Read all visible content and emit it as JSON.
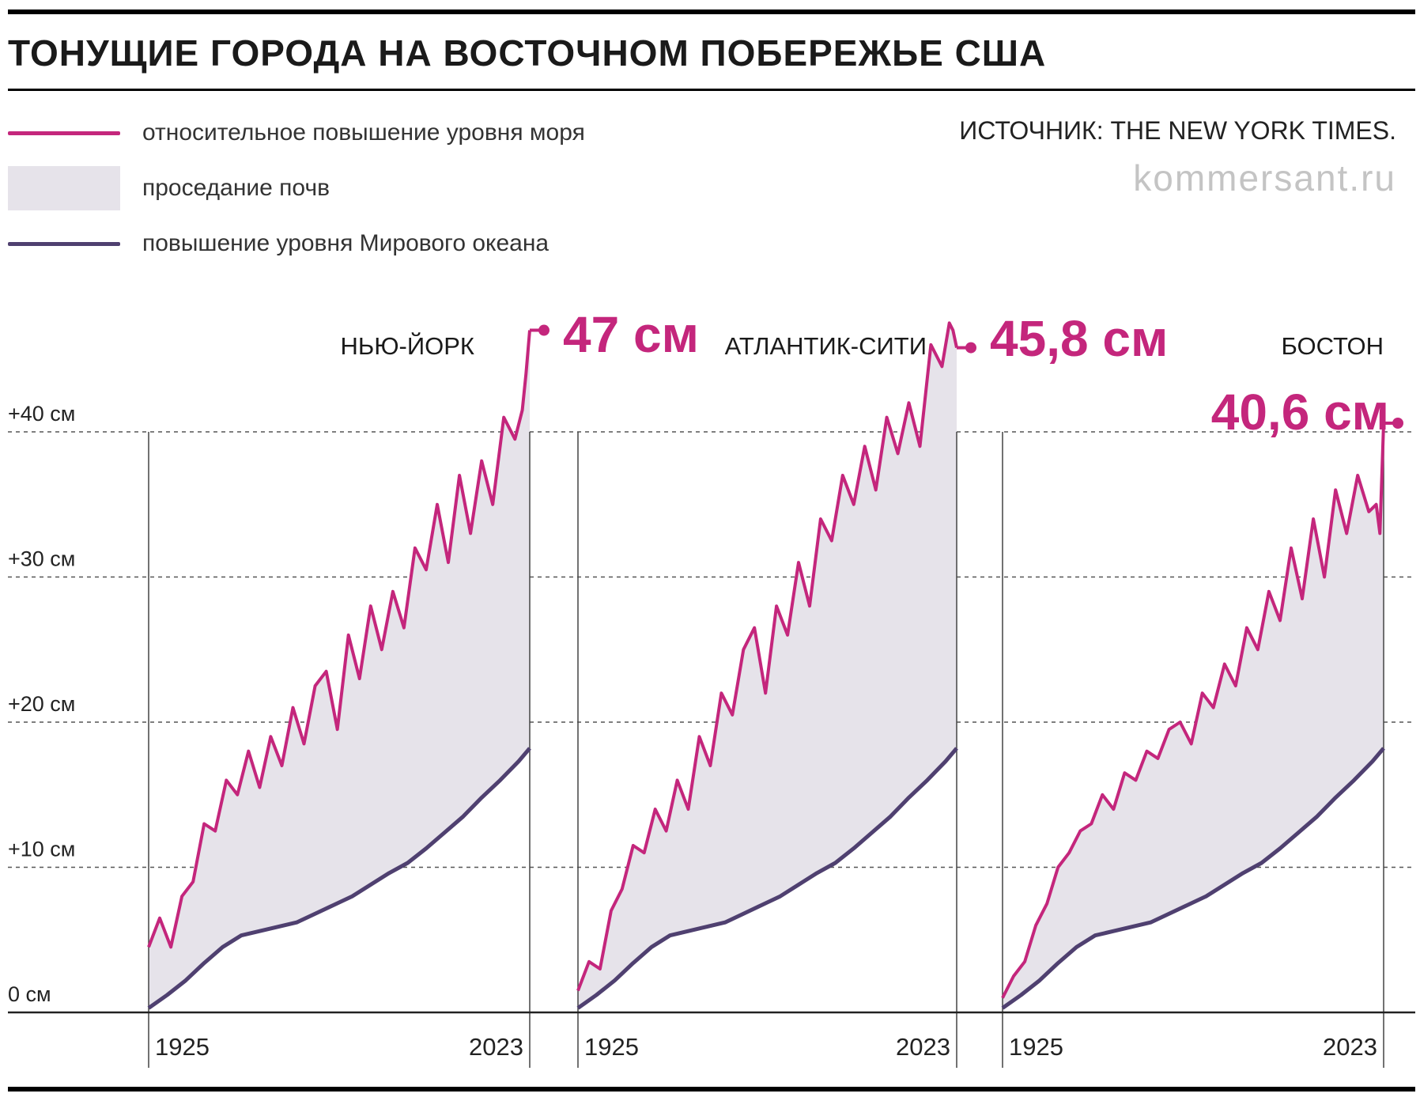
{
  "title": "ТОНУЩИЕ ГОРОДА НА ВОСТОЧНОМ ПОБЕРЕЖЬЕ США",
  "source": "ИСТОЧНИК: THE NEW YORK TIMES.",
  "watermark": "kommersant.ru",
  "colors": {
    "relative": "#c4267c",
    "subsidence": "#e6e3ea",
    "global": "#4f4070"
  },
  "legend": [
    {
      "label": "относительное повышение уровня моря",
      "symbol": "line",
      "color": "#c4267c"
    },
    {
      "label": "проседание почв",
      "symbol": "area",
      "color": "#e6e3ea"
    },
    {
      "label": "повышение уровня Мирового океана",
      "symbol": "line",
      "color": "#4f4070"
    }
  ],
  "chart_data": {
    "type": "line",
    "y_unit": "см",
    "ylim": [
      0,
      47
    ],
    "xlim": [
      1920,
      2024
    ],
    "yticks": [
      {
        "value": 0,
        "label": "0 см"
      },
      {
        "value": 10,
        "label": "+10 см"
      },
      {
        "value": 20,
        "label": "+20 см"
      },
      {
        "value": 30,
        "label": "+30 см"
      },
      {
        "value": 40,
        "label": "+40 см"
      }
    ],
    "xtick_labels": [
      "1925",
      "2023"
    ],
    "grid": "horizontal dashed at 10, 20, 30, 40",
    "global_sea_level": {
      "name": "повышение уровня Мирового океана",
      "x": [
        1920,
        1925,
        1930,
        1935,
        1940,
        1945,
        1950,
        1955,
        1960,
        1965,
        1970,
        1975,
        1980,
        1985,
        1990,
        1995,
        2000,
        2005,
        2010,
        2015,
        2020,
        2023
      ],
      "y": [
        0.3,
        1.2,
        2.2,
        3.4,
        4.5,
        5.3,
        5.6,
        5.9,
        6.2,
        6.8,
        7.4,
        8.0,
        8.8,
        9.6,
        10.3,
        11.3,
        12.4,
        13.5,
        14.8,
        16.0,
        17.3,
        18.2
      ]
    },
    "cities": [
      {
        "name": "НЬЮ-ЙОРК",
        "final_label": "47 см",
        "final_value": 47,
        "x": [
          1920,
          1923,
          1926,
          1929,
          1932,
          1935,
          1938,
          1941,
          1944,
          1947,
          1950,
          1953,
          1956,
          1959,
          1962,
          1965,
          1968,
          1971,
          1974,
          1977,
          1980,
          1983,
          1986,
          1989,
          1992,
          1995,
          1998,
          2001,
          2004,
          2007,
          2010,
          2013,
          2016,
          2019,
          2021,
          2022,
          2023
        ],
        "y": [
          4.5,
          6.5,
          4.5,
          8,
          9,
          13,
          12.5,
          16,
          15,
          18,
          15.5,
          19,
          17,
          21,
          18.5,
          22.5,
          23.5,
          19.5,
          26,
          23,
          28,
          25,
          29,
          26.5,
          32,
          30.5,
          35,
          31,
          37,
          33,
          38,
          35,
          41,
          39.5,
          41.5,
          44,
          47
        ]
      },
      {
        "name": "АТЛАНТИК-СИТИ",
        "final_label": "45,8 см",
        "final_value": 45.8,
        "x": [
          1920,
          1923,
          1926,
          1929,
          1932,
          1935,
          1938,
          1941,
          1944,
          1947,
          1950,
          1953,
          1956,
          1959,
          1962,
          1965,
          1968,
          1971,
          1974,
          1977,
          1980,
          1983,
          1986,
          1989,
          1992,
          1995,
          1998,
          2001,
          2004,
          2007,
          2010,
          2013,
          2016,
          2019,
          2021,
          2022,
          2023
        ],
        "y": [
          1.5,
          3.5,
          3,
          7,
          8.5,
          11.5,
          11,
          14,
          12.5,
          16,
          14,
          19,
          17,
          22,
          20.5,
          25,
          26.5,
          22,
          28,
          26,
          31,
          28,
          34,
          32.5,
          37,
          35,
          39,
          36,
          41,
          38.5,
          42,
          39,
          46,
          44.5,
          47.5,
          47,
          45.8
        ]
      },
      {
        "name": "БОСТОН",
        "final_label": "40,6 см",
        "final_value": 40.6,
        "x": [
          1920,
          1923,
          1926,
          1929,
          1932,
          1935,
          1938,
          1941,
          1944,
          1947,
          1950,
          1953,
          1956,
          1959,
          1962,
          1965,
          1968,
          1971,
          1974,
          1977,
          1980,
          1983,
          1986,
          1989,
          1992,
          1995,
          1998,
          2001,
          2004,
          2007,
          2010,
          2013,
          2016,
          2019,
          2021,
          2022,
          2023
        ],
        "y": [
          1,
          2.5,
          3.5,
          6,
          7.5,
          10,
          11,
          12.5,
          13,
          15,
          14,
          16.5,
          16,
          18,
          17.5,
          19.5,
          20,
          18.5,
          22,
          21,
          24,
          22.5,
          26.5,
          25,
          29,
          27,
          32,
          28.5,
          34,
          30,
          36,
          33,
          37,
          34.5,
          35,
          33,
          40.6
        ]
      }
    ]
  }
}
